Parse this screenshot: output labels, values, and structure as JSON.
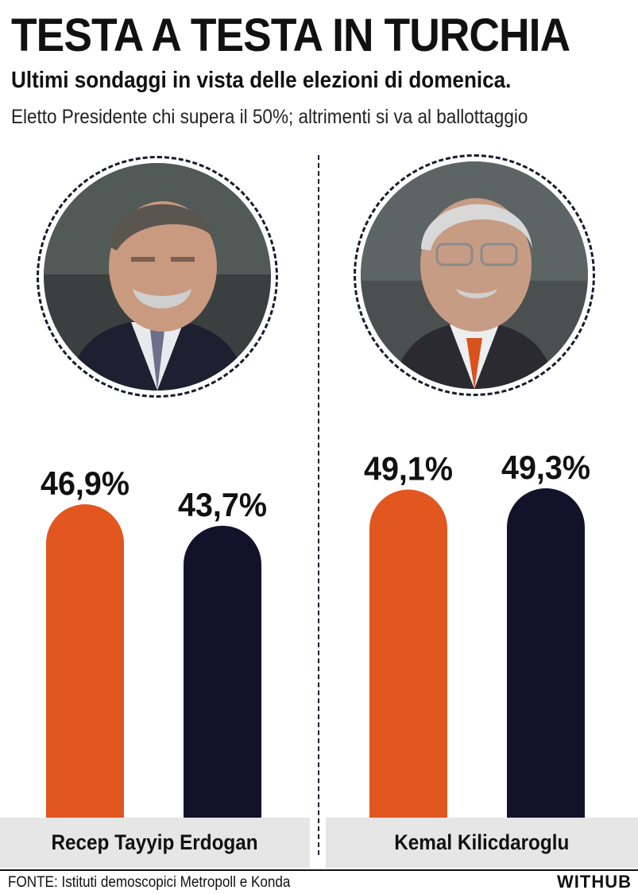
{
  "header": {
    "title": "TESTA A TESTA IN TURCHIA",
    "subtitle": "Ultimi sondaggi in vista delle elezioni di domenica.",
    "note": "Eletto Presidente chi supera il 50%; altrimenti si va al ballottaggio"
  },
  "candidates": [
    {
      "name": "Recep Tayyip Erdogan",
      "portrait": "portrait-photo"
    },
    {
      "name": "Kemal Kilicdaroglu",
      "portrait": "portrait-photo"
    }
  ],
  "chart_data": {
    "type": "bar",
    "title": "TESTA A TESTA IN TURCHIA",
    "xlabel": "",
    "ylabel": "",
    "ylim": [
      0,
      100
    ],
    "grid": false,
    "categories": [
      "Recep Tayyip Erdogan",
      "Kemal Kilicdaroglu"
    ],
    "series": [
      {
        "values": [
          46.9,
          49.1
        ],
        "labels": [
          "46,9%",
          "49,1%"
        ],
        "color": "#E2561F"
      },
      {
        "values": [
          43.7,
          49.3
        ],
        "labels": [
          "43,7%",
          "49,3%"
        ],
        "color": "#12122A"
      }
    ]
  },
  "footer": {
    "source": "FONTE: Istituti demoscopici Metropoll e Konda",
    "brand": "WITHUB"
  },
  "colors": {
    "orange": "#E2561F",
    "navy": "#12122A",
    "band": "#E6E6E6"
  }
}
